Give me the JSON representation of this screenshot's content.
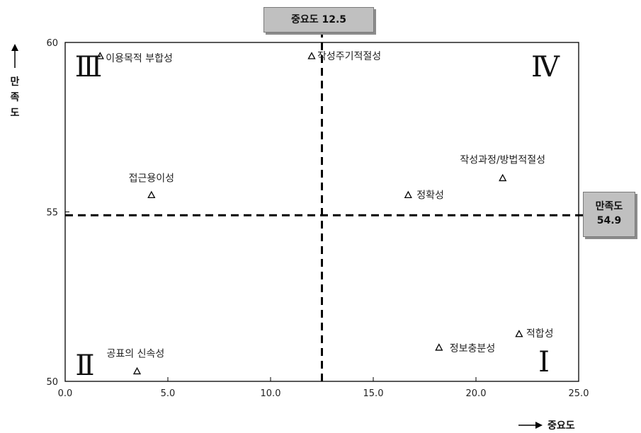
{
  "chart_data": {
    "type": "scatter",
    "xlim": [
      0,
      25
    ],
    "ylim": [
      50,
      60
    ],
    "x_ticks": [
      "0.0",
      "5.0",
      "10.0",
      "15.0",
      "20.0",
      "25.0"
    ],
    "y_ticks": [
      "50",
      "55",
      "60"
    ],
    "xlabel": "중요도",
    "ylabel": "만족도",
    "reference_lines": {
      "importance": {
        "value": 12.5,
        "label": "중요도 12.5"
      },
      "satisfaction": {
        "value": 54.9,
        "label_line1": "만족도",
        "label_line2": "54.9"
      }
    },
    "quadrant_labels": [
      "Ⅰ",
      "Ⅱ",
      "Ⅲ",
      "Ⅳ"
    ],
    "points": [
      {
        "name": "이용목적 부합성",
        "x": 1.7,
        "y": 59.6
      },
      {
        "name": "작성주기적절성",
        "x": 12.0,
        "y": 59.6
      },
      {
        "name": "접근용이성",
        "x": 4.2,
        "y": 55.5
      },
      {
        "name": "작성과정/방법적절성",
        "x": 21.3,
        "y": 56.0
      },
      {
        "name": "정확성",
        "x": 16.7,
        "y": 55.5
      },
      {
        "name": "적합성",
        "x": 22.1,
        "y": 51.4
      },
      {
        "name": "정보충분성",
        "x": 18.2,
        "y": 51.0
      },
      {
        "name": "공표의 신속성",
        "x": 3.5,
        "y": 50.3
      }
    ],
    "grid": false,
    "marker": "triangle"
  }
}
